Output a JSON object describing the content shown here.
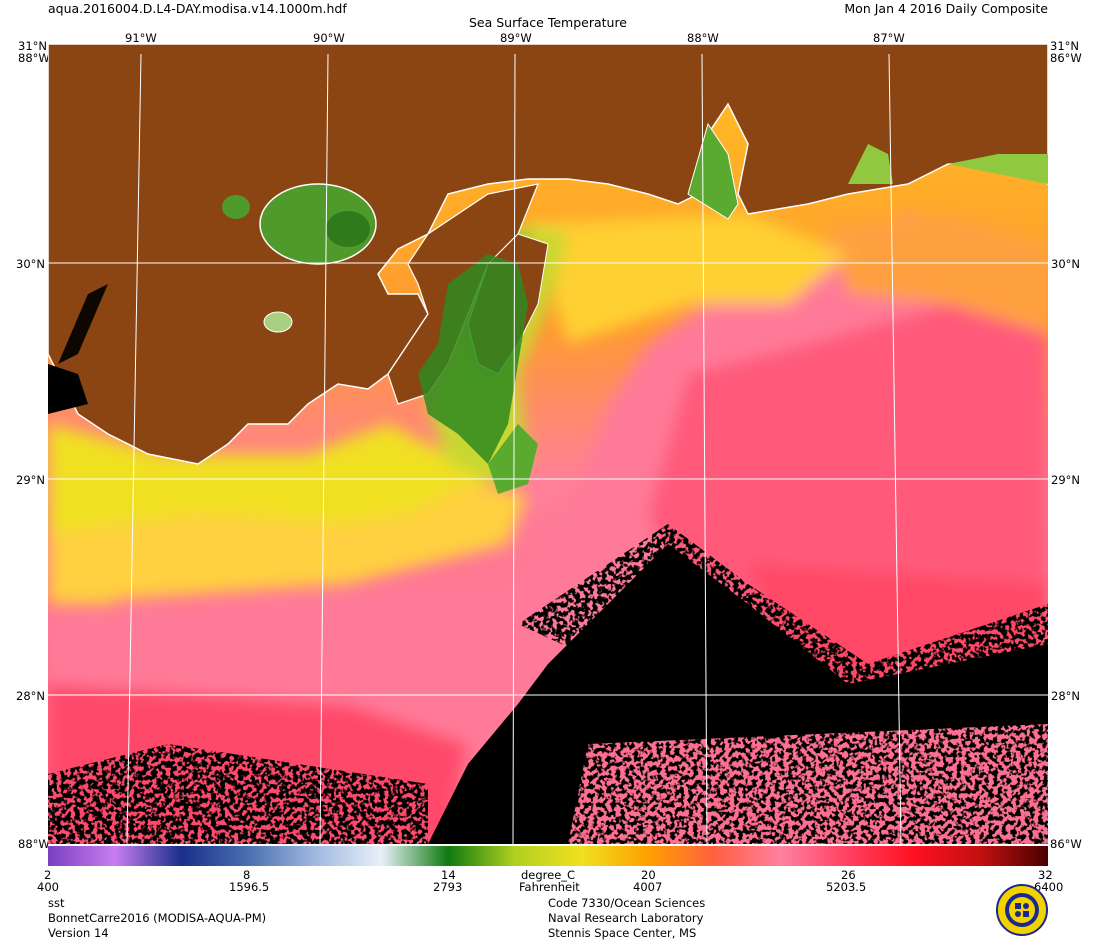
{
  "header": {
    "filename": "aqua.2016004.D.L4-DAY.modisa.v14.1000m.hdf",
    "date": "Mon Jan  4 2016 Daily Composite",
    "title": "Sea Surface Temperature"
  },
  "map": {
    "lon_labels": [
      "91°W",
      "90°W",
      "89°W",
      "88°W",
      "87°W"
    ],
    "lat_labels_left": [
      "31°N",
      "30°N",
      "29°N",
      "28°N"
    ],
    "lat_labels_right": [
      "31°N",
      "30°N",
      "29°N",
      "28°N"
    ],
    "corner_top_left": "88°W",
    "corner_top_right": "86°W",
    "corner_bottom_left": "88°W",
    "corner_bottom_right": "86°W",
    "colors": {
      "land": "#8b4513",
      "no_data": "#000000",
      "coastline": "#ffffff",
      "grid": "#ffffff"
    }
  },
  "colorbar": {
    "unit_primary": "degree_C",
    "unit_secondary": "Fahrenheit",
    "celsius_ticks": [
      "2",
      "8",
      "14",
      "20",
      "26",
      "32"
    ],
    "fahrenheit_ticks": [
      "400",
      "1596.5",
      "2793",
      "4007",
      "5203.5",
      "6400"
    ],
    "gradient_stops": [
      "#7a3fc0",
      "#c87ef0",
      "#1a2f8a",
      "#4a6fb0",
      "#9fb8e0",
      "#e8f0f8",
      "#107a10",
      "#b0d020",
      "#f0e020",
      "#ffa000",
      "#ff6040",
      "#ff80a0",
      "#ff4060",
      "#ff1020",
      "#c01010",
      "#4a0000"
    ]
  },
  "footer": {
    "left": [
      "sst",
      "BonnetCarre2016 (MODISA-AQUA-PM)",
      "Version 14"
    ],
    "right": [
      "Code 7330/Ocean Sciences",
      "Naval Research Laboratory",
      "Stennis Space Center, MS"
    ],
    "seal_label": "NRL seal"
  }
}
